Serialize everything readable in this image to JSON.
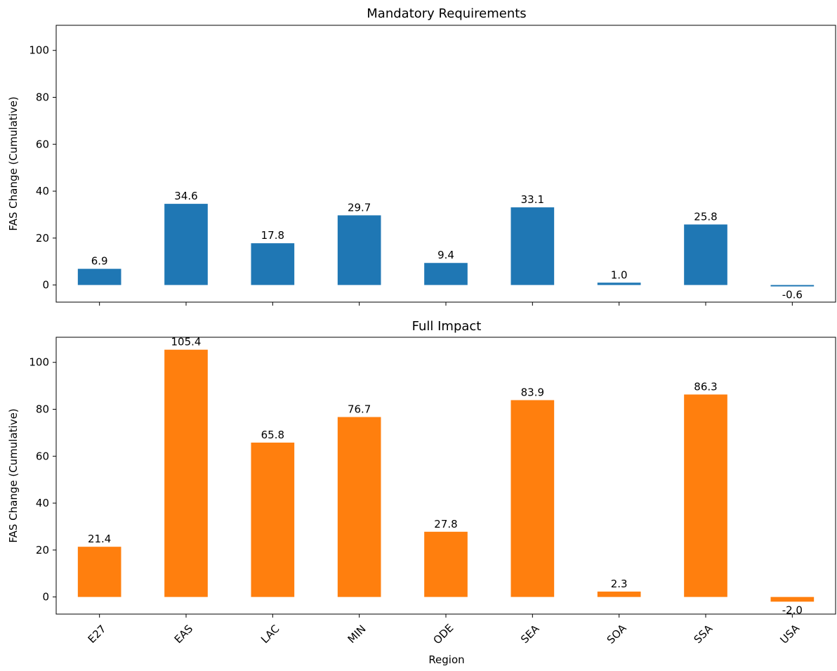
{
  "chart_data": [
    {
      "type": "bar",
      "title": "Mandatory Requirements",
      "ylabel": "FAS Change (Cumulative)",
      "xlabel": "",
      "categories": [
        "E27",
        "EAS",
        "LAC",
        "MIN",
        "ODE",
        "SEA",
        "SOA",
        "SSA",
        "USA"
      ],
      "values": [
        6.9,
        34.6,
        17.8,
        29.7,
        9.4,
        33.1,
        1.0,
        25.8,
        -0.6
      ],
      "value_labels": [
        "6.9",
        "34.6",
        "17.8",
        "29.7",
        "9.4",
        "33.1",
        "1.0",
        "25.8",
        "-0.6"
      ],
      "color": "#1f77b4",
      "ylim": [
        -7.3,
        110.7
      ],
      "yticks": [
        0,
        20,
        40,
        60,
        80,
        100
      ],
      "ytick_labels": [
        "0",
        "20",
        "40",
        "60",
        "80",
        "100"
      ],
      "grid": false,
      "show_xtick_labels": false
    },
    {
      "type": "bar",
      "title": "Full Impact",
      "ylabel": "FAS Change (Cumulative)",
      "xlabel": "Region",
      "categories": [
        "E27",
        "EAS",
        "LAC",
        "MIN",
        "ODE",
        "SEA",
        "SOA",
        "SSA",
        "USA"
      ],
      "values": [
        21.4,
        105.4,
        65.8,
        76.7,
        27.8,
        83.9,
        2.3,
        86.3,
        -2.0
      ],
      "value_labels": [
        "21.4",
        "105.4",
        "65.8",
        "76.7",
        "27.8",
        "83.9",
        "2.3",
        "86.3",
        "-2.0"
      ],
      "color": "#ff7f0e",
      "ylim": [
        -7.3,
        110.7
      ],
      "yticks": [
        0,
        20,
        40,
        60,
        80,
        100
      ],
      "ytick_labels": [
        "0",
        "20",
        "40",
        "60",
        "80",
        "100"
      ],
      "grid": false,
      "show_xtick_labels": true
    }
  ]
}
